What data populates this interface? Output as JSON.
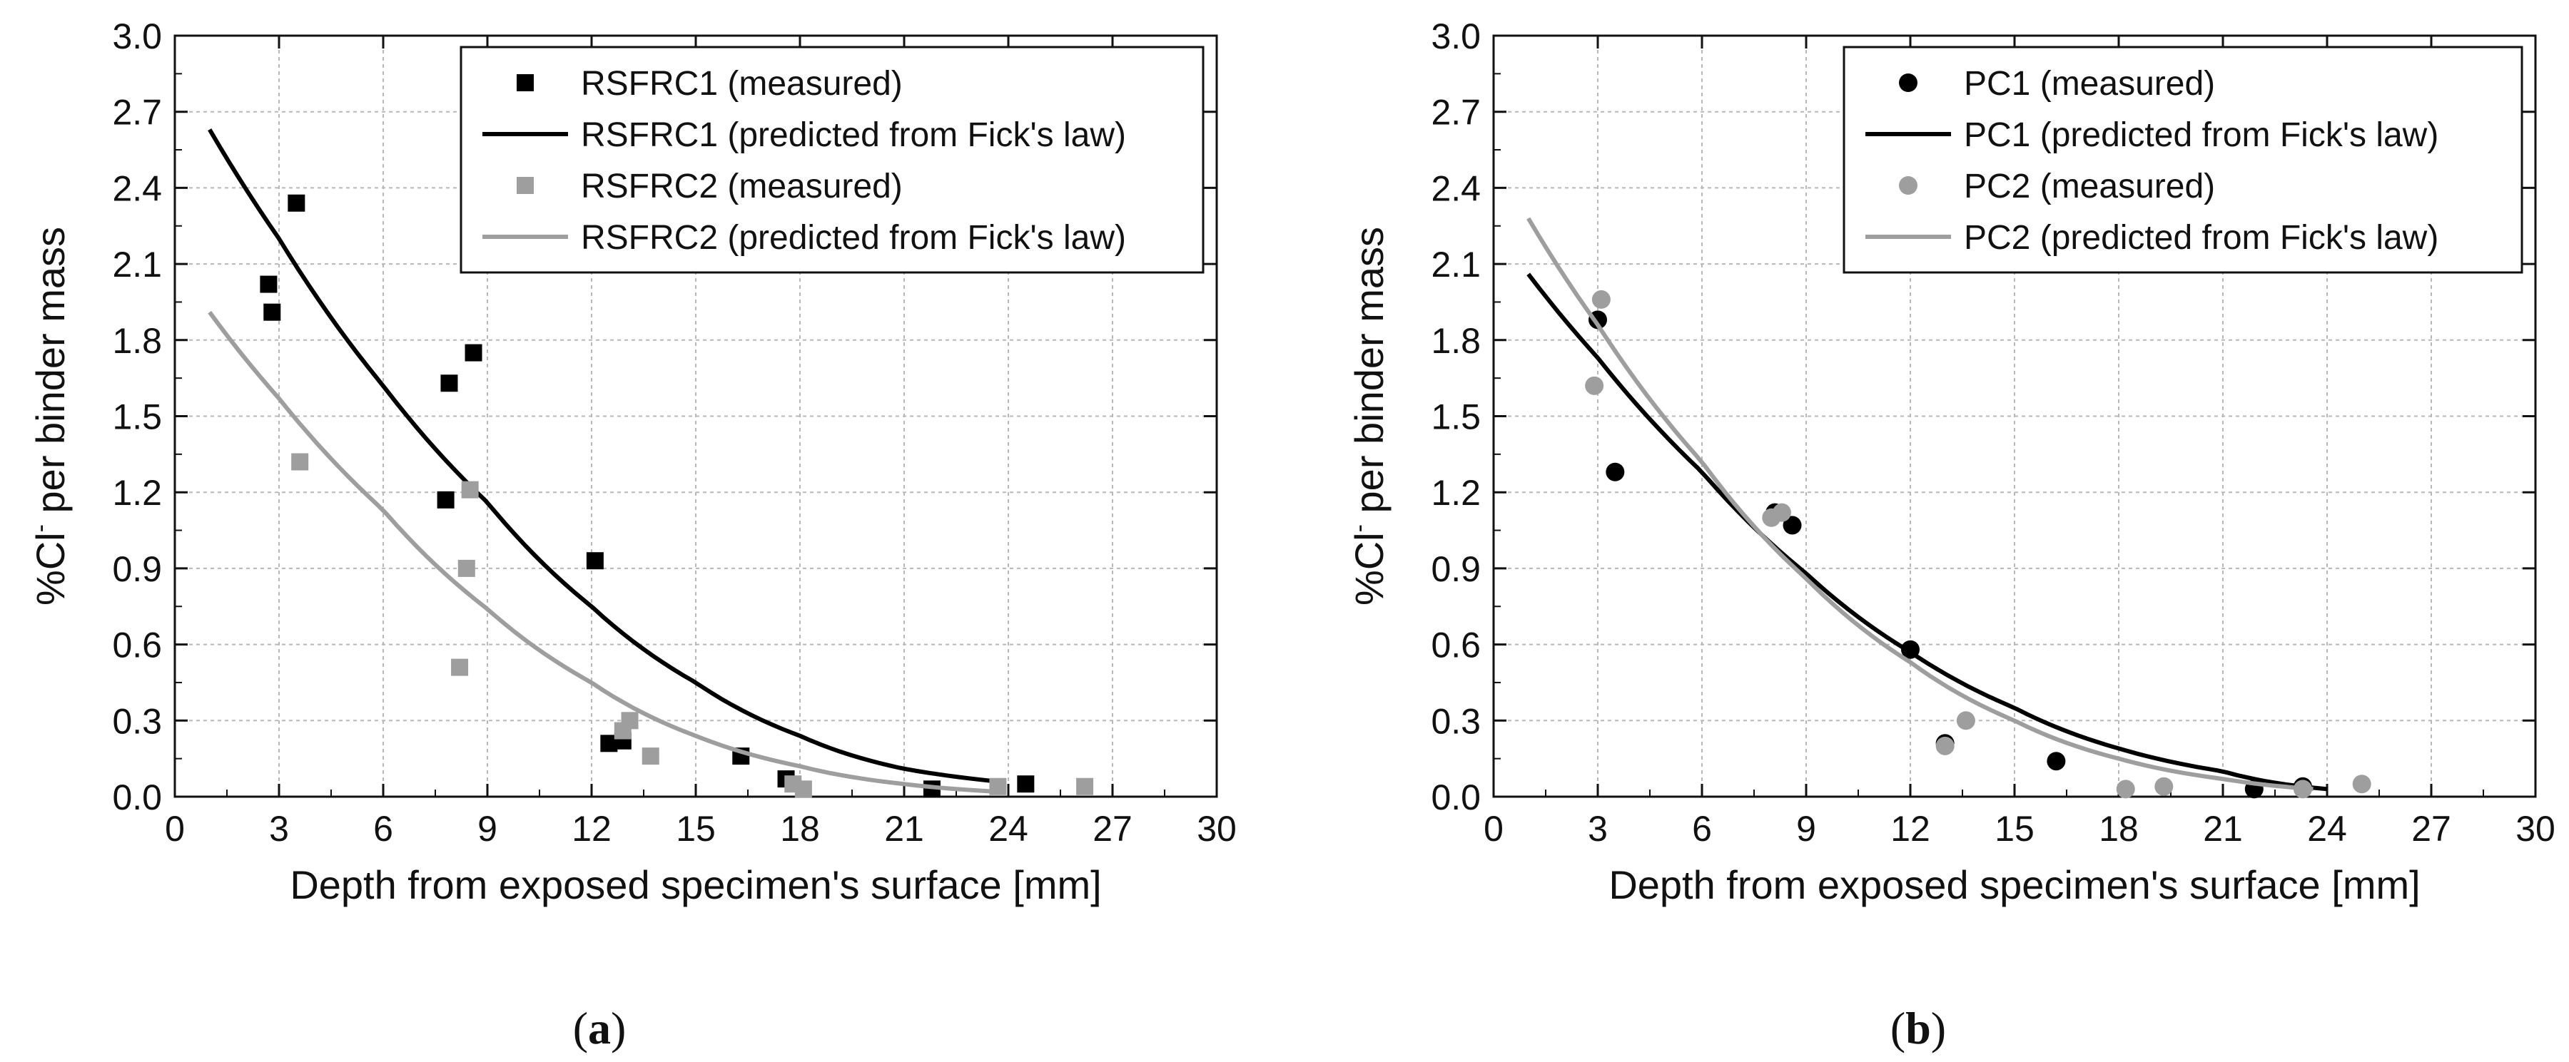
{
  "chart_data": [
    {
      "type": "scatter",
      "caption_letter": "a",
      "xlabel": "Depth from exposed specimen's surface [mm]",
      "ylabel_prefix": "%Cl",
      "ylabel_sup": "-",
      "ylabel_suffix": " per binder mass",
      "xlim": [
        0,
        30
      ],
      "ylim": [
        0,
        3.0
      ],
      "xticks": [
        "0",
        "3",
        "6",
        "9",
        "12",
        "15",
        "18",
        "21",
        "24",
        "27",
        "30"
      ],
      "yticks": [
        "0.0",
        "0.3",
        "0.6",
        "0.9",
        "1.2",
        "1.5",
        "1.8",
        "2.1",
        "2.4",
        "2.7",
        "3.0"
      ],
      "grid": true,
      "legend_position": "top-right",
      "series": [
        {
          "name": "RSFRC1 (measured)",
          "kind": "points",
          "marker": "square",
          "color": "#000000",
          "points": [
            [
              2.7,
              2.02
            ],
            [
              2.8,
              1.91
            ],
            [
              3.5,
              2.34
            ],
            [
              7.8,
              1.17
            ],
            [
              7.9,
              1.63
            ],
            [
              8.6,
              1.75
            ],
            [
              12.1,
              0.93
            ],
            [
              12.5,
              0.21
            ],
            [
              12.9,
              0.22
            ],
            [
              16.3,
              0.16
            ],
            [
              17.6,
              0.07
            ],
            [
              21.8,
              0.03
            ],
            [
              24.5,
              0.05
            ]
          ]
        },
        {
          "name": "RSFRC1 (predicted from Fick's law)",
          "kind": "curve",
          "color": "#000000",
          "x_range": [
            1,
            23.7
          ],
          "points": [
            [
              1,
              2.63
            ],
            [
              3,
              2.2
            ],
            [
              6,
              1.62
            ],
            [
              9,
              1.16
            ],
            [
              12,
              0.75
            ],
            [
              15,
              0.45
            ],
            [
              18,
              0.24
            ],
            [
              21,
              0.11
            ],
            [
              23.7,
              0.06
            ]
          ]
        },
        {
          "name": "RSFRC2 (measured)",
          "kind": "points",
          "marker": "square",
          "color": "#9e9e9e",
          "points": [
            [
              3.6,
              1.32
            ],
            [
              8.2,
              0.51
            ],
            [
              8.4,
              0.9
            ],
            [
              8.5,
              1.21
            ],
            [
              12.9,
              0.26
            ],
            [
              13.1,
              0.3
            ],
            [
              13.7,
              0.16
            ],
            [
              17.8,
              0.05
            ],
            [
              18.1,
              0.03
            ],
            [
              23.7,
              0.04
            ],
            [
              26.2,
              0.04
            ]
          ]
        },
        {
          "name": "RSFRC2 (predicted from Fick's law)",
          "kind": "curve",
          "color": "#9e9e9e",
          "x_range": [
            1,
            23.7
          ],
          "points": [
            [
              1,
              1.91
            ],
            [
              3,
              1.57
            ],
            [
              6,
              1.13
            ],
            [
              9,
              0.74
            ],
            [
              12,
              0.45
            ],
            [
              15,
              0.24
            ],
            [
              18,
              0.12
            ],
            [
              21,
              0.05
            ],
            [
              23.7,
              0.02
            ]
          ]
        }
      ]
    },
    {
      "type": "scatter",
      "caption_letter": "b",
      "xlabel": "Depth from exposed specimen's surface [mm]",
      "ylabel_prefix": "%Cl",
      "ylabel_sup": "-",
      "ylabel_suffix": " per binder mass",
      "xlim": [
        0,
        30
      ],
      "ylim": [
        0,
        3.0
      ],
      "xticks": [
        "0",
        "3",
        "6",
        "9",
        "12",
        "15",
        "18",
        "21",
        "24",
        "27",
        "30"
      ],
      "yticks": [
        "0.0",
        "0.3",
        "0.6",
        "0.9",
        "1.2",
        "1.5",
        "1.8",
        "2.1",
        "2.4",
        "2.7",
        "3.0"
      ],
      "grid": true,
      "legend_position": "top-right",
      "series": [
        {
          "name": "PC1 (measured)",
          "kind": "points",
          "marker": "circle",
          "color": "#000000",
          "points": [
            [
              3.0,
              1.88
            ],
            [
              3.5,
              1.28
            ],
            [
              8.1,
              1.12
            ],
            [
              8.6,
              1.07
            ],
            [
              12.0,
              0.58
            ],
            [
              13.0,
              0.21
            ],
            [
              16.2,
              0.14
            ],
            [
              21.9,
              0.03
            ],
            [
              23.3,
              0.04
            ]
          ]
        },
        {
          "name": "PC1 (predicted from Fick's law)",
          "kind": "curve",
          "color": "#000000",
          "x_range": [
            1,
            24
          ],
          "points": [
            [
              1,
              2.06
            ],
            [
              3,
              1.73
            ],
            [
              6,
              1.28
            ],
            [
              9,
              0.88
            ],
            [
              12,
              0.57
            ],
            [
              15,
              0.35
            ],
            [
              18,
              0.19
            ],
            [
              21,
              0.1
            ],
            [
              24,
              0.03
            ]
          ]
        },
        {
          "name": "PC2 (measured)",
          "kind": "points",
          "marker": "circle",
          "color": "#9e9e9e",
          "points": [
            [
              2.9,
              1.62
            ],
            [
              3.1,
              1.96
            ],
            [
              8.0,
              1.1
            ],
            [
              8.3,
              1.12
            ],
            [
              13.0,
              0.2
            ],
            [
              13.6,
              0.3
            ],
            [
              18.2,
              0.03
            ],
            [
              19.3,
              0.04
            ],
            [
              23.3,
              0.03
            ],
            [
              25.0,
              0.05
            ]
          ]
        },
        {
          "name": "PC2 (predicted from Fick's law)",
          "kind": "curve",
          "color": "#9e9e9e",
          "x_range": [
            1,
            23.6
          ],
          "points": [
            [
              1,
              2.28
            ],
            [
              3,
              1.86
            ],
            [
              6,
              1.32
            ],
            [
              9,
              0.86
            ],
            [
              12,
              0.53
            ],
            [
              15,
              0.3
            ],
            [
              18,
              0.15
            ],
            [
              21,
              0.07
            ],
            [
              23.6,
              0.03
            ]
          ]
        }
      ]
    }
  ]
}
